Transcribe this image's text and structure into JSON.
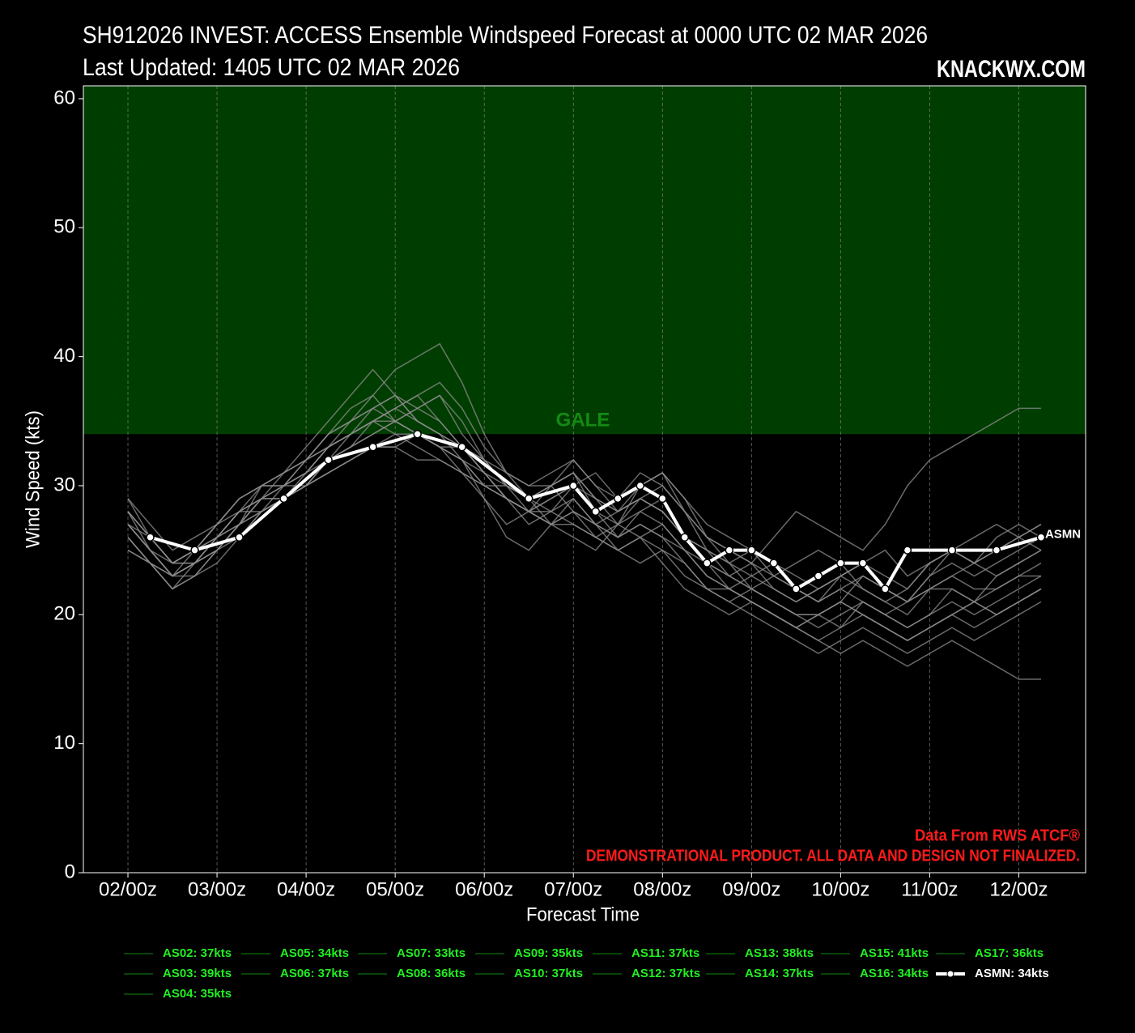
{
  "chart_data": {
    "type": "line",
    "title": "SH912026 INVEST: ACCESS Ensemble Windspeed Forecast at 0000 UTC 02 MAR 2026",
    "subtitle": "Last Updated: 1405 UTC 02 MAR 2026",
    "brand": "KNACKWX.COM",
    "credit": "Data From RWS ATCF®",
    "disclaimer": "DEMONSTRATIONAL PRODUCT. ALL DATA AND DESIGN NOT FINALIZED.",
    "x_label": "Forecast Time",
    "y_label": "Wind Speed (kts)",
    "xlim": [
      -12,
      258
    ],
    "ylim": [
      0,
      61
    ],
    "xticks": [
      {
        "value": 0,
        "label": "02/00z"
      },
      {
        "value": 24,
        "label": "03/00z"
      },
      {
        "value": 48,
        "label": "04/00z"
      },
      {
        "value": 72,
        "label": "05/00z"
      },
      {
        "value": 96,
        "label": "06/00z"
      },
      {
        "value": 120,
        "label": "07/00z"
      },
      {
        "value": 144,
        "label": "08/00z"
      },
      {
        "value": 168,
        "label": "09/00z"
      },
      {
        "value": 192,
        "label": "10/00z"
      },
      {
        "value": 216,
        "label": "11/00z"
      },
      {
        "value": 240,
        "label": "12/00z"
      }
    ],
    "yticks": [
      0,
      10,
      20,
      30,
      40,
      50,
      60
    ],
    "grid": true,
    "threshold": {
      "value": 34,
      "label": "GALE",
      "color": "#003d00",
      "label_color": "#138a13"
    },
    "legend_line_color": "#0b5a0b",
    "legend_text_color": "#22ee22",
    "x": [
      0,
      6,
      12,
      18,
      24,
      30,
      36,
      42,
      48,
      54,
      60,
      66,
      72,
      78,
      84,
      90,
      96,
      102,
      108,
      114,
      120,
      126,
      132,
      138,
      144,
      150,
      156,
      162,
      168,
      174,
      180,
      186,
      192,
      198,
      204,
      210,
      216,
      222,
      228,
      234,
      240,
      246
    ],
    "series": [
      {
        "name": "AS02: 37kts",
        "color": "#8c8c8c",
        "values": [
          29,
          26,
          24,
          25,
          27,
          29,
          30,
          30,
          32,
          34,
          36,
          37,
          35,
          34,
          33,
          31,
          29,
          27,
          28,
          30,
          31,
          28,
          26,
          28,
          29,
          26,
          24,
          22,
          21,
          20,
          19,
          20,
          21,
          23,
          22,
          21,
          23,
          25,
          24,
          25,
          26,
          27
        ]
      },
      {
        "name": "AS03: 39kts",
        "color": "#8c8c8c",
        "values": [
          26,
          24,
          22,
          23,
          25,
          27,
          30,
          31,
          33,
          35,
          37,
          39,
          37,
          35,
          34,
          33,
          31,
          30,
          29,
          27,
          26,
          25,
          27,
          29,
          28,
          26,
          25,
          24,
          22,
          21,
          20,
          20,
          19,
          21,
          20,
          19,
          20,
          22,
          21,
          23,
          24,
          25
        ]
      },
      {
        "name": "AS04: 35kts",
        "color": "#8c8c8c",
        "values": [
          28,
          26,
          24,
          24,
          26,
          28,
          29,
          29,
          30,
          32,
          33,
          35,
          34,
          34,
          33,
          33,
          32,
          30,
          29,
          30,
          28,
          26,
          27,
          30,
          31,
          29,
          26,
          24,
          25,
          23,
          22,
          21,
          23,
          24,
          23,
          22,
          24,
          25,
          26,
          27,
          26,
          25
        ]
      },
      {
        "name": "AS05: 34kts",
        "color": "#8c8c8c",
        "values": [
          27,
          25,
          23,
          25,
          27,
          28,
          28,
          29,
          30,
          31,
          32,
          33,
          33,
          34,
          33,
          32,
          30,
          29,
          28,
          28,
          29,
          27,
          26,
          27,
          26,
          24,
          22,
          22,
          23,
          24,
          22,
          21,
          22,
          21,
          20,
          21,
          22,
          22,
          21,
          22,
          23,
          23
        ]
      },
      {
        "name": "AS06: 37kts",
        "color": "#8c8c8c",
        "values": [
          25,
          24,
          22,
          23,
          24,
          26,
          28,
          30,
          32,
          34,
          35,
          36,
          37,
          36,
          35,
          33,
          31,
          29,
          27,
          28,
          30,
          31,
          29,
          30,
          31,
          28,
          25,
          24,
          23,
          22,
          21,
          22,
          23,
          24,
          25,
          23,
          24,
          25,
          24,
          26,
          27,
          26
        ]
      },
      {
        "name": "AS07: 33kts",
        "color": "#8c8c8c",
        "values": [
          27,
          26,
          24,
          24,
          25,
          27,
          28,
          29,
          30,
          31,
          32,
          33,
          33,
          32,
          32,
          31,
          30,
          30,
          29,
          28,
          27,
          26,
          25,
          24,
          25,
          23,
          22,
          21,
          20,
          19,
          18,
          17,
          18,
          19,
          18,
          17,
          18,
          19,
          18,
          19,
          20,
          21
        ]
      },
      {
        "name": "AS08: 36kts",
        "color": "#8c8c8c",
        "values": [
          28,
          25,
          23,
          24,
          26,
          28,
          29,
          30,
          31,
          33,
          34,
          35,
          36,
          35,
          34,
          32,
          29,
          26,
          25,
          27,
          29,
          27,
          28,
          29,
          28,
          26,
          24,
          23,
          22,
          23,
          24,
          25,
          24,
          22,
          21,
          22,
          24,
          25,
          24,
          23,
          24,
          25
        ]
      },
      {
        "name": "AS09: 35kts",
        "color": "#8c8c8c",
        "values": [
          26,
          24,
          23,
          23,
          25,
          27,
          29,
          30,
          30,
          32,
          33,
          34,
          35,
          34,
          33,
          32,
          31,
          29,
          28,
          27,
          28,
          27,
          25,
          26,
          24,
          22,
          21,
          20,
          21,
          20,
          19,
          18,
          19,
          20,
          19,
          18,
          19,
          20,
          21,
          20,
          21,
          22
        ]
      },
      {
        "name": "AS10: 37kts",
        "color": "#8c8c8c",
        "values": [
          27,
          25,
          24,
          25,
          26,
          28,
          29,
          31,
          32,
          33,
          34,
          36,
          37,
          35,
          34,
          33,
          32,
          31,
          30,
          31,
          32,
          30,
          28,
          29,
          28,
          26,
          25,
          23,
          24,
          22,
          21,
          22,
          23,
          22,
          21,
          20,
          22,
          23,
          22,
          22,
          23,
          24
        ]
      },
      {
        "name": "AS11: 37kts",
        "color": "#8c8c8c",
        "values": [
          29,
          27,
          25,
          26,
          27,
          29,
          30,
          31,
          32,
          33,
          34,
          35,
          36,
          37,
          35,
          33,
          31,
          29,
          28,
          29,
          30,
          28,
          27,
          26,
          27,
          25,
          24,
          23,
          22,
          21,
          20,
          19,
          20,
          21,
          20,
          19,
          20,
          21,
          20,
          21,
          22,
          23
        ]
      },
      {
        "name": "AS12: 37kts",
        "color": "#8c8c8c",
        "values": [
          26,
          24,
          22,
          24,
          26,
          28,
          30,
          30,
          31,
          33,
          34,
          35,
          35,
          36,
          37,
          34,
          32,
          30,
          29,
          30,
          31,
          29,
          28,
          30,
          31,
          29,
          27,
          26,
          25,
          24,
          23,
          22,
          23,
          24,
          22,
          21,
          22,
          23,
          24,
          25,
          26,
          27
        ]
      },
      {
        "name": "AS13: 38kts",
        "color": "#8c8c8c",
        "values": [
          28,
          26,
          24,
          25,
          26,
          27,
          29,
          30,
          31,
          32,
          34,
          35,
          36,
          37,
          38,
          36,
          33,
          31,
          30,
          30,
          32,
          30,
          29,
          31,
          30,
          28,
          26,
          25,
          24,
          23,
          22,
          21,
          22,
          23,
          22,
          21,
          23,
          24,
          23,
          24,
          25,
          26
        ]
      },
      {
        "name": "AS14: 37kts",
        "color": "#8c8c8c",
        "values": [
          27,
          25,
          23,
          24,
          25,
          27,
          29,
          29,
          30,
          32,
          33,
          34,
          35,
          36,
          37,
          35,
          32,
          30,
          28,
          27,
          28,
          27,
          26,
          27,
          26,
          25,
          23,
          22,
          21,
          20,
          19,
          18,
          17,
          18,
          17,
          16,
          17,
          18,
          17,
          16,
          15,
          15
        ]
      },
      {
        "name": "AS15: 41kts",
        "color": "#8c8c8c",
        "values": [
          25,
          24,
          23,
          24,
          26,
          27,
          28,
          29,
          31,
          33,
          35,
          37,
          39,
          40,
          41,
          38,
          34,
          31,
          29,
          30,
          31,
          29,
          27,
          28,
          27,
          25,
          23,
          22,
          21,
          20,
          19,
          20,
          21,
          20,
          19,
          18,
          19,
          20,
          19,
          20,
          21,
          22
        ]
      },
      {
        "name": "AS16: 34kts",
        "color": "#8c8c8c",
        "values": [
          27,
          25,
          23,
          24,
          25,
          26,
          28,
          29,
          30,
          31,
          32,
          33,
          34,
          33,
          32,
          31,
          30,
          29,
          28,
          27,
          27,
          26,
          25,
          26,
          25,
          24,
          22,
          21,
          22,
          21,
          20,
          20,
          21,
          20,
          19,
          18,
          19,
          20,
          21,
          20,
          21,
          22
        ]
      },
      {
        "name": "AS17: 36kts",
        "color": "#8c8c8c",
        "values": [
          28,
          26,
          24,
          25,
          27,
          29,
          30,
          31,
          32,
          34,
          35,
          36,
          35,
          34,
          33,
          32,
          30,
          29,
          28,
          29,
          30,
          29,
          28,
          29,
          30,
          28,
          26,
          25,
          24,
          26,
          28,
          27,
          26,
          25,
          27,
          30,
          32,
          33,
          34,
          35,
          36,
          36
        ]
      },
      {
        "name": "ASMN: 34kts",
        "end_label": "ASMN",
        "color": "#ffffff",
        "mean": true,
        "x": [
          6,
          18,
          30,
          42,
          54,
          66,
          78,
          90,
          108,
          120,
          126,
          132,
          138,
          144,
          150,
          156,
          162,
          168,
          174,
          180,
          186,
          192,
          198,
          204,
          210,
          222,
          234,
          246
        ],
        "values": [
          26,
          25,
          26,
          29,
          32,
          33,
          34,
          33,
          29,
          30,
          28,
          29,
          30,
          29,
          26,
          24,
          25,
          25,
          24,
          22,
          23,
          24,
          24,
          22,
          25,
          25,
          25,
          26
        ]
      }
    ]
  }
}
